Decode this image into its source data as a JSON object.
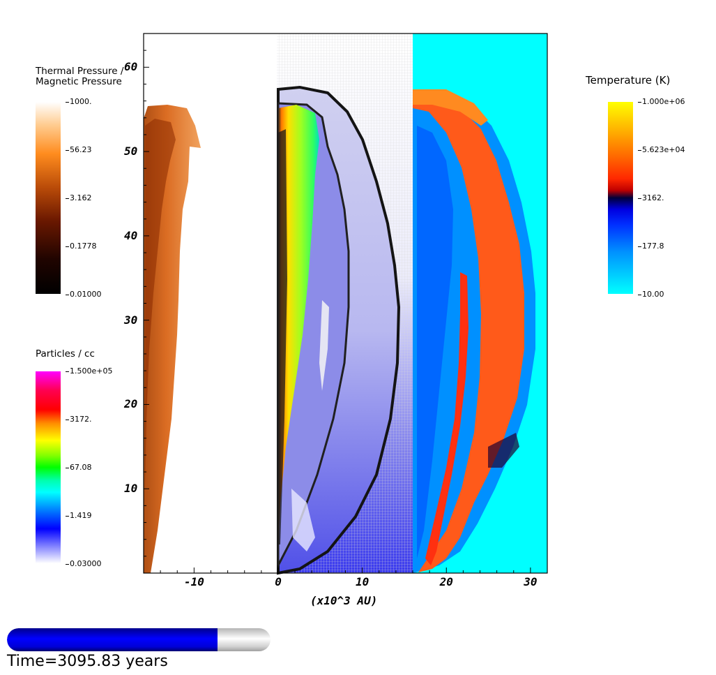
{
  "chart_data": {
    "type": "heatmap",
    "xlabel": "(x10^3 AU)",
    "ylabel": "",
    "xlim": [
      -16,
      32
    ],
    "ylim": [
      0,
      64
    ],
    "x_ticks": [
      "-10",
      "0",
      "10",
      "20",
      "30"
    ],
    "y_ticks": [
      "10",
      "20",
      "30",
      "40",
      "50",
      "60"
    ],
    "x_tick_values": [
      -10,
      0,
      10,
      20,
      30
    ],
    "y_tick_values": [
      10,
      20,
      30,
      40,
      50,
      60
    ],
    "panels": [
      {
        "quantity": "Thermal Pressure / Magnetic Pressure",
        "x_range": [
          -16,
          0
        ]
      },
      {
        "quantity": "Particles / cc",
        "x_range": [
          0,
          16
        ]
      },
      {
        "quantity": "Temperature (K)",
        "x_range": [
          16,
          32
        ]
      }
    ],
    "colorbars": [
      {
        "title_lines": [
          "Thermal Pressure /",
          "Magnetic Pressure"
        ],
        "ticks": [
          "1000.",
          "56.23",
          "3.162",
          "0.1778",
          "0.01000"
        ],
        "colors": [
          "#ffffff",
          "#ff8c1e",
          "#7a2000",
          "#000000"
        ]
      },
      {
        "title_lines": [
          "Particles / cc"
        ],
        "ticks": [
          "1.500e+05",
          "3172.",
          "67.08",
          "1.419",
          "0.03000"
        ],
        "colors": [
          "#ff00ff",
          "#ff0000",
          "#ff8c00",
          "#ffff00",
          "#00ff00",
          "#00ffff",
          "#0064ff",
          "#0000ff",
          "#ffffff"
        ]
      },
      {
        "title_lines": [
          "Temperature (K)"
        ],
        "ticks": [
          "1.000e+06",
          "5.623e+04",
          "3162.",
          "177.8",
          "10.00"
        ],
        "colors": [
          "#ffff00",
          "#ff8800",
          "#ff2200",
          "#00003a",
          "#0000ff",
          "#0088ff",
          "#00ffff"
        ]
      }
    ]
  },
  "time": {
    "label": "Time=3095.83 years",
    "progress": 0.8
  },
  "colors": {
    "outflow_orange": "#e06a10",
    "density_outline": "#111111",
    "temperature_background": "#00ffff",
    "progress_fill": "#0000e0"
  }
}
